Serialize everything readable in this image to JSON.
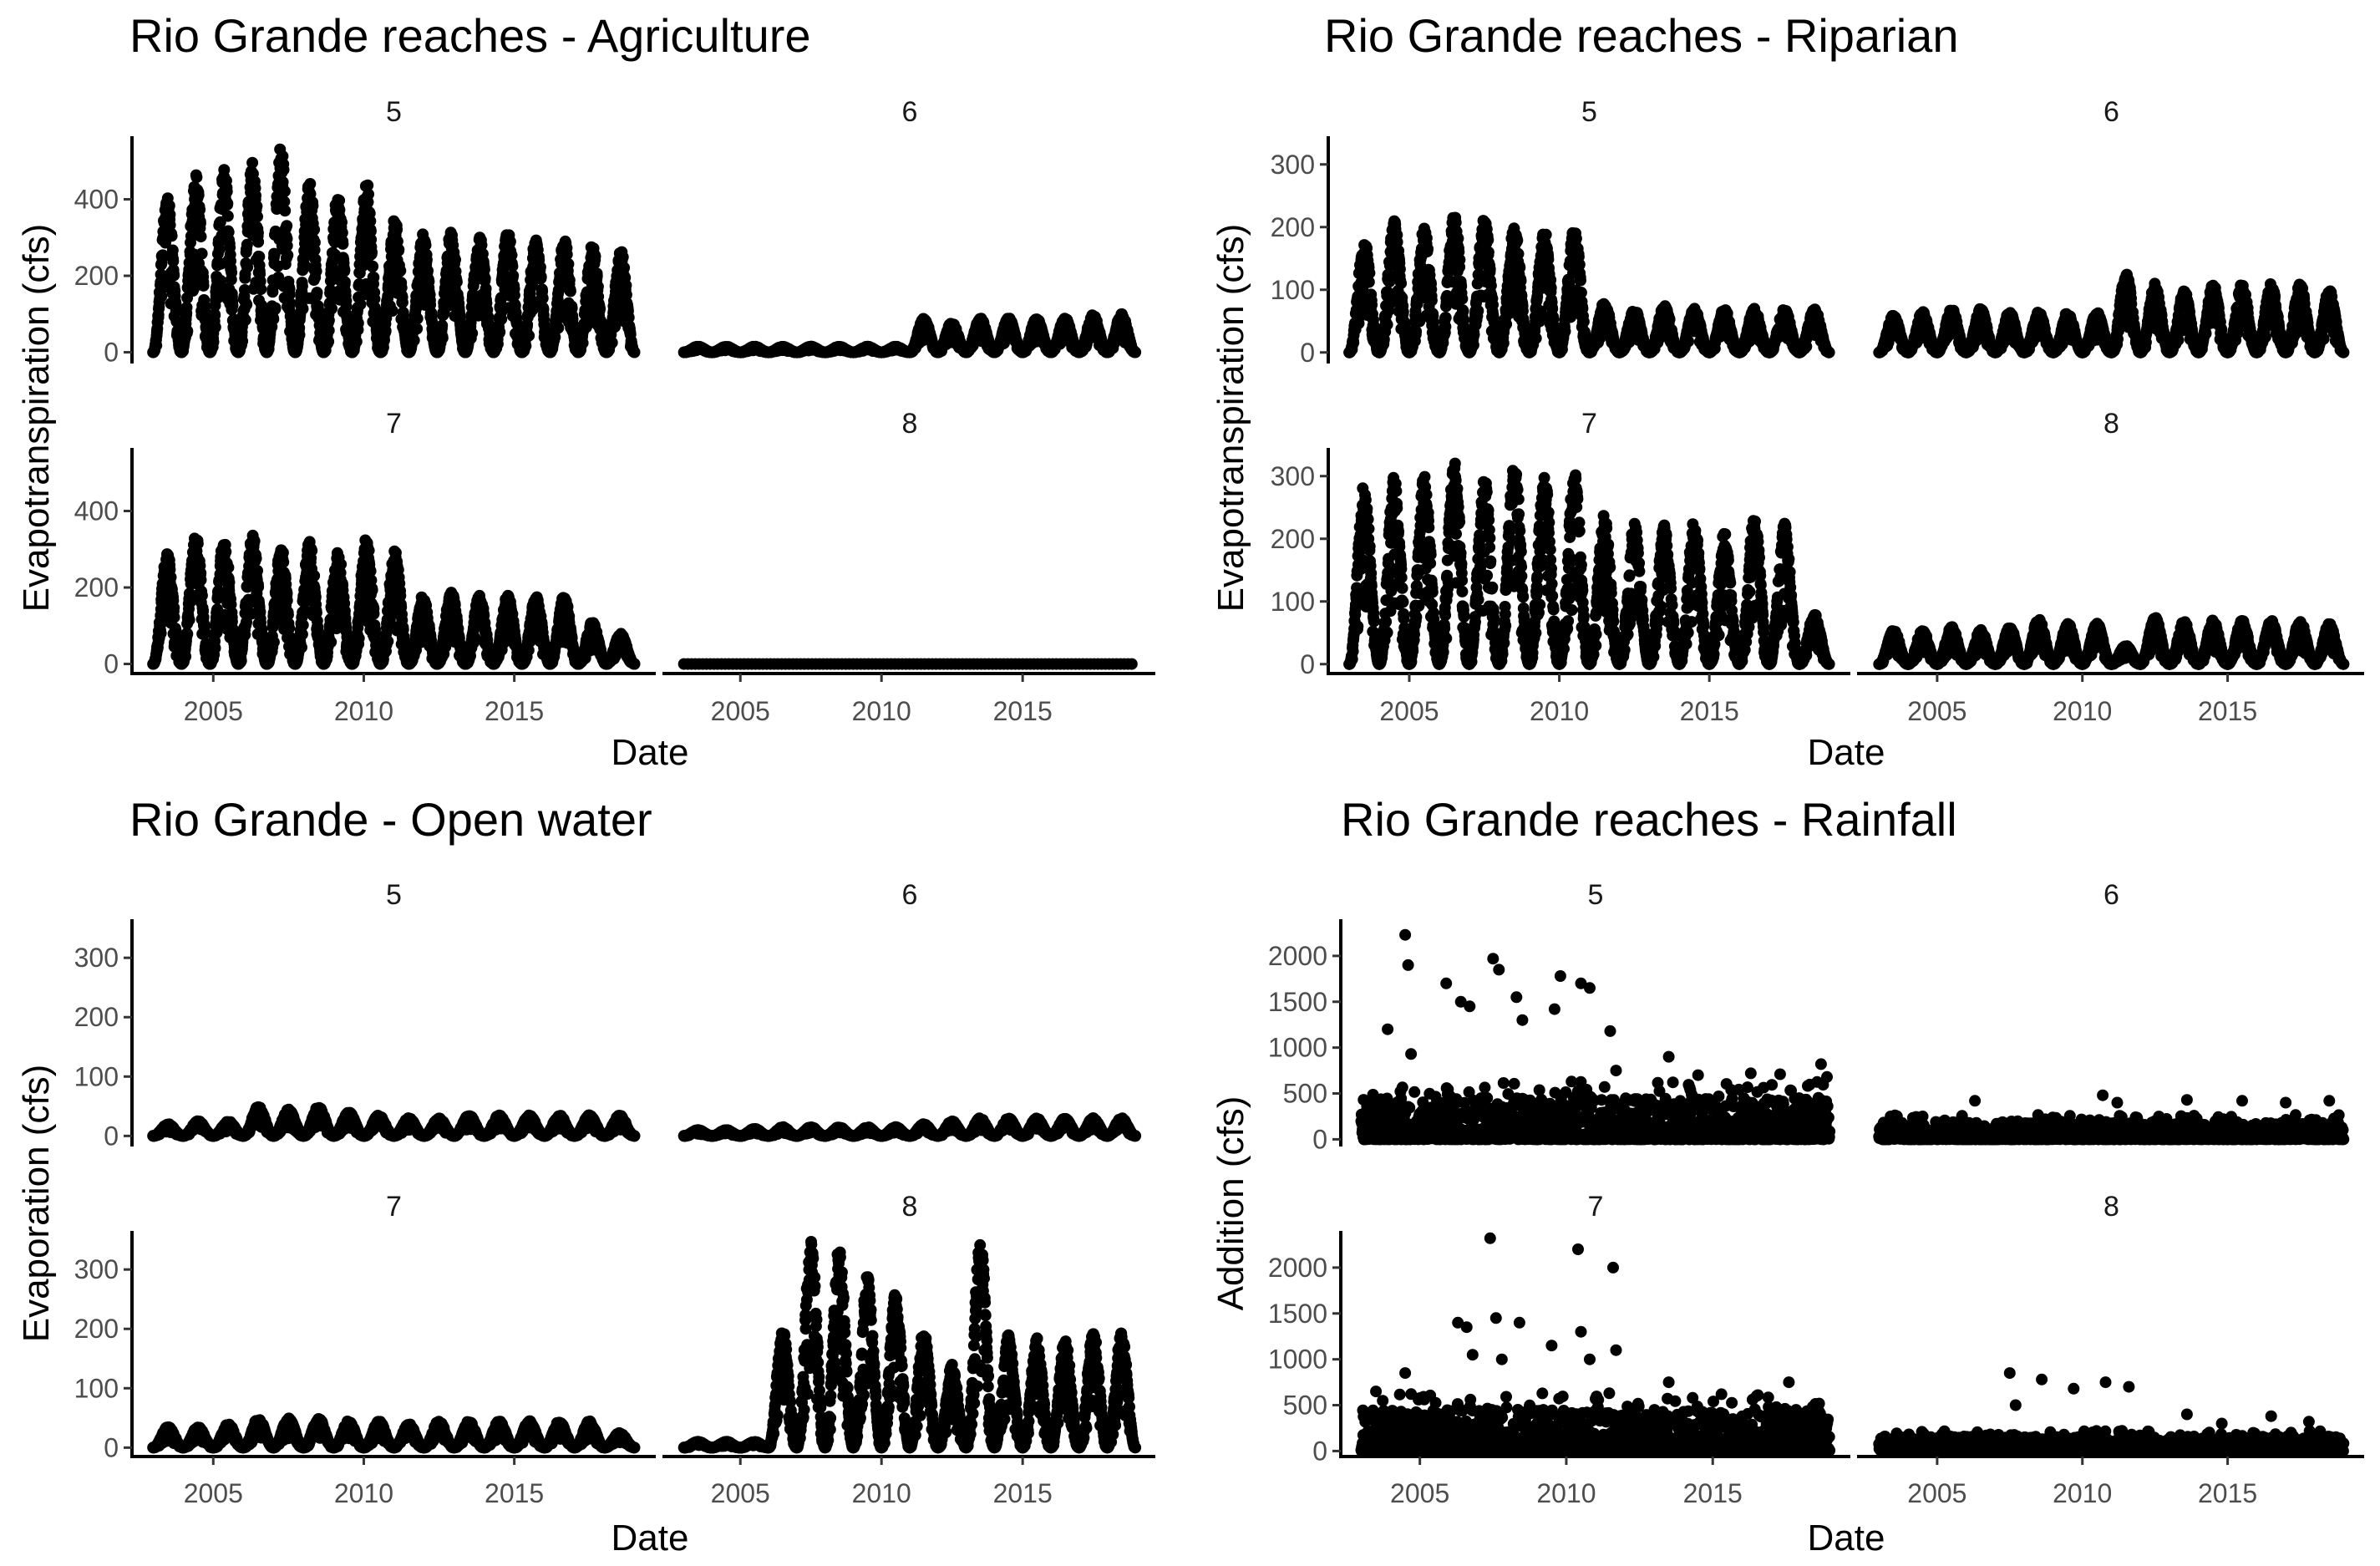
{
  "chart_data": [
    {
      "type": "scatter",
      "title": "Rio Grande reaches - Agriculture",
      "xlabel": "Date",
      "ylabel": "Evapotranspiration (cfs)",
      "xlim": [
        2002.3,
        2019.7
      ],
      "ylim": [
        -25,
        565
      ],
      "yticks": [
        0,
        200,
        400
      ],
      "xticks": [
        2005,
        2010,
        2015
      ],
      "grid": false,
      "legend": "none",
      "facets": [
        {
          "label": "5",
          "start": 2003.0,
          "end": 2019.0,
          "mode": "seasonal",
          "segments": [
            {
              "from": 2003.0,
              "to": 2011.5,
              "peaks": [
                410,
                470,
                480,
                500,
                540,
                450,
                420,
                450,
                350
              ]
            },
            {
              "from": 2011.5,
              "to": 2019.0,
              "peaks": [
                310,
                320,
                310,
                320,
                300,
                300,
                280,
                270
              ]
            }
          ]
        },
        {
          "label": "6",
          "start": 2003.0,
          "end": 2019.0,
          "mode": "seasonal",
          "segments": [
            {
              "from": 2003.0,
              "to": 2011.0,
              "peaks": [
                15,
                15,
                15,
                15,
                15,
                15,
                15,
                15
              ]
            },
            {
              "from": 2011.0,
              "to": 2019.0,
              "peaks": [
                90,
                80,
                90,
                90,
                90,
                90,
                100,
                100
              ]
            }
          ]
        },
        {
          "label": "7",
          "start": 2003.0,
          "end": 2019.0,
          "mode": "seasonal",
          "segments": [
            {
              "from": 2003.0,
              "to": 2011.5,
              "peaks": [
                290,
                340,
                330,
                340,
                310,
                320,
                300,
                330,
                300
              ]
            },
            {
              "from": 2011.5,
              "to": 2019.0,
              "peaks": [
                180,
                190,
                180,
                180,
                180,
                180,
                110,
                80
              ]
            }
          ]
        },
        {
          "label": "8",
          "start": 2003.0,
          "end": 2019.0,
          "mode": "seasonal",
          "segments": [
            {
              "from": 2003.0,
              "to": 2019.0,
              "peaks": [
                0
              ]
            }
          ]
        }
      ]
    },
    {
      "type": "scatter",
      "title": "Rio Grande reaches - Riparian",
      "xlabel": "Date",
      "ylabel": "Evapotranspiration (cfs)",
      "xlim": [
        2002.3,
        2019.7
      ],
      "ylim": [
        -15,
        345
      ],
      "yticks": [
        0,
        100,
        200,
        300
      ],
      "xticks": [
        2005,
        2010,
        2015
      ],
      "grid": false,
      "legend": "none",
      "facets": [
        {
          "label": "5",
          "start": 2003.0,
          "end": 2019.0,
          "mode": "seasonal",
          "segments": [
            {
              "from": 2003.0,
              "to": 2011.0,
              "peaks": [
                180,
                210,
                200,
                220,
                215,
                200,
                195,
                200
              ]
            },
            {
              "from": 2011.0,
              "to": 2019.0,
              "peaks": [
                80,
                70,
                75,
                70,
                70,
                70,
                70,
                70
              ]
            }
          ]
        },
        {
          "label": "6",
          "start": 2003.0,
          "end": 2019.0,
          "mode": "seasonal",
          "segments": [
            {
              "from": 2003.0,
              "to": 2011.0,
              "peaks": [
                60,
                65,
                70,
                70,
                65,
                65,
                65,
                65
              ]
            },
            {
              "from": 2011.0,
              "to": 2013.0,
              "peaks": [
                130,
                110
              ]
            },
            {
              "from": 2013.0,
              "to": 2019.0,
              "peaks": [
                100,
                110,
                110,
                110,
                110,
                100
              ]
            }
          ]
        },
        {
          "label": "7",
          "start": 2003.0,
          "end": 2019.0,
          "mode": "seasonal",
          "segments": [
            {
              "from": 2003.0,
              "to": 2011.0,
              "peaks": [
                290,
                300,
                305,
                325,
                300,
                330,
                305,
                310
              ]
            },
            {
              "from": 2011.0,
              "to": 2018.0,
              "peaks": [
                240,
                225,
                230,
                230,
                210,
                235,
                225
              ]
            },
            {
              "from": 2018.0,
              "to": 2019.0,
              "peaks": [
                80
              ]
            }
          ]
        },
        {
          "label": "8",
          "start": 2003.0,
          "end": 2019.0,
          "mode": "seasonal",
          "segments": [
            {
              "from": 2003.0,
              "to": 2011.0,
              "peaks": [
                55,
                55,
                60,
                55,
                60,
                75,
                65,
                65
              ]
            },
            {
              "from": 2011.0,
              "to": 2012.0,
              "peaks": [
                30
              ]
            },
            {
              "from": 2012.0,
              "to": 2019.0,
              "peaks": [
                75,
                70,
                70,
                70,
                70,
                70,
                65
              ]
            }
          ]
        }
      ]
    },
    {
      "type": "scatter",
      "title": "Rio Grande - Open water",
      "xlabel": "Date",
      "ylabel": "Evaporation (cfs)",
      "xlim": [
        2002.3,
        2019.7
      ],
      "ylim": [
        -15,
        365
      ],
      "yticks": [
        0,
        100,
        200,
        300
      ],
      "xticks": [
        2005,
        2010,
        2015
      ],
      "grid": false,
      "legend": "none",
      "facets": [
        {
          "label": "5",
          "start": 2003.0,
          "end": 2019.0,
          "mode": "seasonal",
          "segments": [
            {
              "from": 2003.0,
              "to": 2019.0,
              "peaks": [
                20,
                25,
                25,
                50,
                45,
                50,
                40,
                35,
                30,
                30,
                35,
                35,
                35,
                35,
                35,
                35
              ]
            }
          ]
        },
        {
          "label": "6",
          "start": 2003.0,
          "end": 2019.0,
          "mode": "seasonal",
          "segments": [
            {
              "from": 2003.0,
              "to": 2019.0,
              "peaks": [
                10,
                10,
                12,
                15,
                15,
                15,
                15,
                15,
                20,
                25,
                30,
                30,
                30,
                30,
                30,
                30
              ]
            }
          ]
        },
        {
          "label": "7",
          "start": 2003.0,
          "end": 2019.0,
          "mode": "seasonal",
          "segments": [
            {
              "from": 2003.0,
              "to": 2019.0,
              "peaks": [
                35,
                35,
                40,
                50,
                50,
                50,
                45,
                45,
                40,
                45,
                45,
                45,
                45,
                45,
                45,
                25
              ]
            }
          ]
        },
        {
          "label": "8",
          "start": 2003.0,
          "end": 2019.0,
          "mode": "seasonal",
          "segments": [
            {
              "from": 2003.0,
              "to": 2006.0,
              "peaks": [
                10,
                10,
                10
              ]
            },
            {
              "from": 2006.0,
              "to": 2012.0,
              "peaks": [
                200,
                350,
                340,
                290,
                270,
                200
              ]
            },
            {
              "from": 2012.0,
              "to": 2019.0,
              "peaks": [
                140,
                350,
                190,
                185,
                185,
                200,
                195
              ]
            }
          ]
        }
      ]
    },
    {
      "type": "scatter",
      "title": "Rio Grande reaches - Rainfall",
      "xlabel": "Date",
      "ylabel": "Addition (cfs)",
      "xlim": [
        2002.3,
        2019.7
      ],
      "ylim": [
        -60,
        2400
      ],
      "yticks": [
        0,
        500,
        1000,
        1500,
        2000
      ],
      "xticks": [
        2005,
        2010,
        2015
      ],
      "grid": false,
      "legend": "none",
      "facets": [
        {
          "label": "5",
          "start": 2003.0,
          "end": 2019.0,
          "mode": "spiky",
          "base": 450,
          "peaks": [
            [
              2003.9,
              1200
            ],
            [
              2004.5,
              2230
            ],
            [
              2004.6,
              1900
            ],
            [
              2004.7,
              930
            ],
            [
              2005.9,
              1700
            ],
            [
              2006.4,
              1500
            ],
            [
              2006.7,
              1450
            ],
            [
              2007.5,
              1970
            ],
            [
              2007.7,
              1850
            ],
            [
              2008.3,
              1550
            ],
            [
              2008.5,
              1300
            ],
            [
              2009.6,
              1420
            ],
            [
              2009.8,
              1780
            ],
            [
              2010.5,
              1700
            ],
            [
              2010.8,
              1650
            ],
            [
              2011.5,
              1180
            ],
            [
              2011.7,
              750
            ],
            [
              2013.5,
              900
            ],
            [
              2014.5,
              700
            ],
            [
              2016.3,
              720
            ],
            [
              2017.3,
              710
            ],
            [
              2018.7,
              820
            ],
            [
              2018.9,
              680
            ]
          ]
        },
        {
          "label": "6",
          "start": 2003.0,
          "end": 2019.0,
          "mode": "spiky",
          "base": 190,
          "peaks": [
            [
              2004.5,
              250
            ],
            [
              2006.3,
              420
            ],
            [
              2008.5,
              200
            ],
            [
              2010.7,
              480
            ],
            [
              2011.2,
              400
            ],
            [
              2013.6,
              430
            ],
            [
              2015.5,
              420
            ],
            [
              2017.0,
              400
            ],
            [
              2018.5,
              420
            ]
          ]
        },
        {
          "label": "7",
          "start": 2003.0,
          "end": 2019.0,
          "mode": "spiky",
          "base": 450,
          "peaks": [
            [
              2003.5,
              650
            ],
            [
              2004.5,
              850
            ],
            [
              2006.3,
              1400
            ],
            [
              2006.6,
              1350
            ],
            [
              2006.8,
              1050
            ],
            [
              2007.4,
              2320
            ],
            [
              2007.6,
              1450
            ],
            [
              2007.8,
              1000
            ],
            [
              2008.4,
              1400
            ],
            [
              2009.5,
              1150
            ],
            [
              2010.4,
              2200
            ],
            [
              2010.5,
              1300
            ],
            [
              2010.8,
              1000
            ],
            [
              2011.6,
              2000
            ],
            [
              2011.7,
              1100
            ],
            [
              2013.5,
              750
            ],
            [
              2015.3,
              620
            ],
            [
              2016.5,
              600
            ],
            [
              2017.6,
              750
            ],
            [
              2018.8,
              350
            ]
          ]
        },
        {
          "label": "8",
          "start": 2003.0,
          "end": 2019.0,
          "mode": "spiky",
          "base": 160,
          "peaks": [
            [
              2004.5,
              200
            ],
            [
              2007.5,
              850
            ],
            [
              2007.7,
              500
            ],
            [
              2008.6,
              780
            ],
            [
              2009.7,
              680
            ],
            [
              2010.8,
              750
            ],
            [
              2011.6,
              700
            ],
            [
              2013.6,
              400
            ],
            [
              2014.8,
              300
            ],
            [
              2016.5,
              380
            ],
            [
              2017.8,
              320
            ]
          ]
        }
      ]
    }
  ]
}
